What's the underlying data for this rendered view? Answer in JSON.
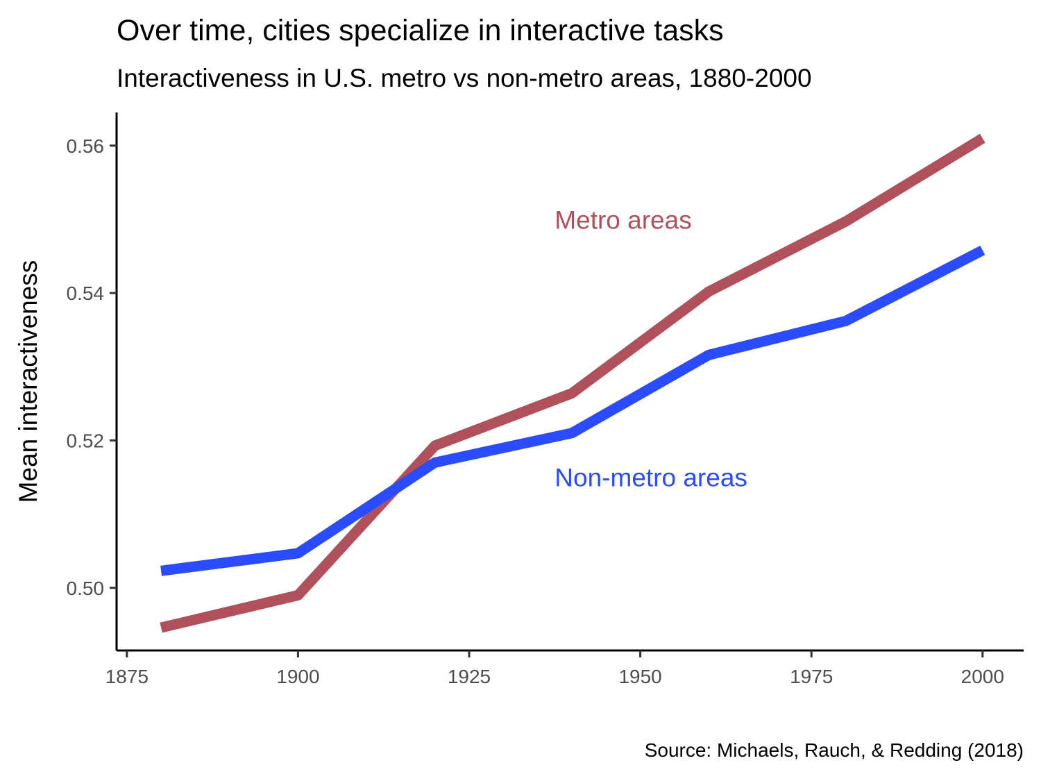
{
  "chart": {
    "title": "Over time, cities specialize in interactive tasks",
    "subtitle": "Interactiveness in U.S. metro vs non-metro areas, 1880-2000",
    "caption": "Source: Michaels, Rauch, & Redding (2018)"
  },
  "chart_data": {
    "type": "line",
    "title": "Over time, cities specialize in interactive tasks",
    "subtitle": "Interactiveness in U.S. metro vs non-metro areas, 1880-2000",
    "caption": "Source: Michaels, Rauch, & Redding (2018)",
    "xlabel": "",
    "ylabel": "Mean interactiveness",
    "xlim": [
      1873.5,
      2006
    ],
    "ylim": [
      0.4915,
      0.5645
    ],
    "x_ticks": [
      1875,
      1900,
      1925,
      1950,
      1975,
      2000
    ],
    "x_tick_labels": [
      "1875",
      "1900",
      "1925",
      "1950",
      "1975",
      "2000"
    ],
    "y_ticks": [
      0.5,
      0.52,
      0.54,
      0.56
    ],
    "y_tick_labels": [
      "0.50",
      "0.52",
      "0.54",
      "0.56"
    ],
    "grid": false,
    "legend": "direct labels on plot",
    "x": [
      1880,
      1900,
      1920,
      1940,
      1960,
      1980,
      2000
    ],
    "series": [
      {
        "name": "Metro areas",
        "color": "#B0505A",
        "values": [
          0.4946,
          0.499,
          0.5193,
          0.5264,
          0.5402,
          0.5497,
          0.561
        ]
      },
      {
        "name": "Non-metro areas",
        "color": "#2B4BFF",
        "values": [
          0.5023,
          0.5047,
          0.517,
          0.521,
          0.5316,
          0.5362,
          0.5458
        ]
      }
    ]
  }
}
